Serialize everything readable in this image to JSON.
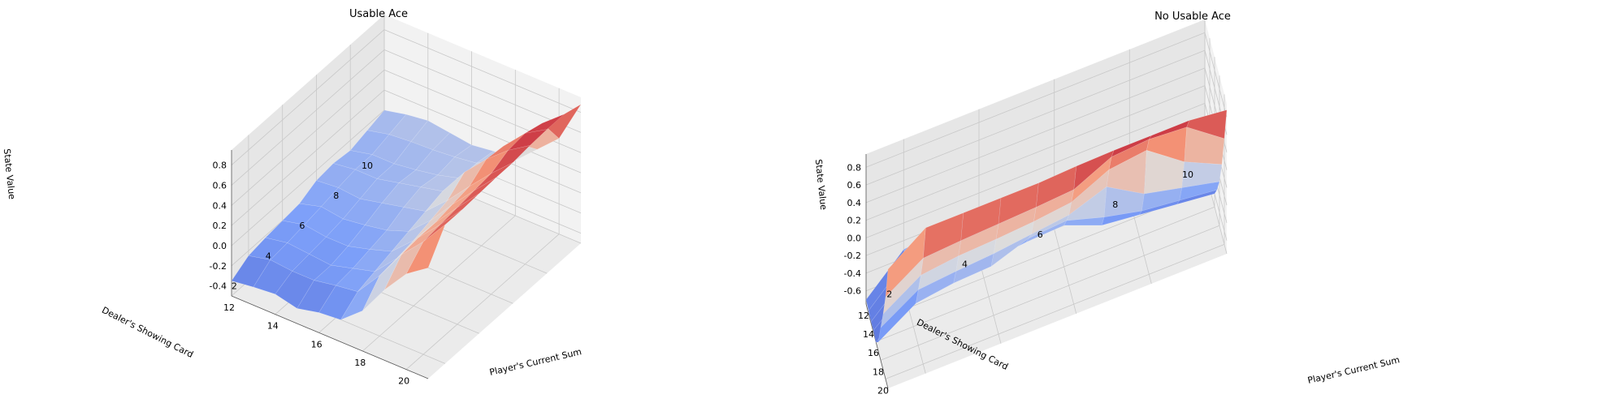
{
  "chart_data": [
    {
      "type": "surface",
      "title": "Usable Ace",
      "xlabel": "Player's Current Sum",
      "ylabel": "Dealer's Showing Card",
      "zlabel": "State Value",
      "x": [
        12,
        13,
        14,
        15,
        16,
        17,
        18,
        19,
        20,
        21
      ],
      "y": [
        1,
        2,
        3,
        4,
        5,
        6,
        7,
        8,
        9,
        10
      ],
      "xticks": [
        "12",
        "14",
        "16",
        "18",
        "20"
      ],
      "yticks": [
        "2",
        "4",
        "6",
        "8",
        "10"
      ],
      "zticks": [
        "-0.4",
        "-0.2",
        "0.0",
        "0.2",
        "0.4",
        "0.6",
        "0.8"
      ],
      "zlim": [
        -0.5,
        0.95
      ],
      "colormap": "coolwarm",
      "z": [
        [
          -0.35,
          -0.32,
          -0.3,
          -0.35,
          -0.3,
          -0.28,
          -0.1,
          0.2,
          0.45,
          0.6
        ],
        [
          -0.25,
          -0.2,
          -0.22,
          -0.22,
          -0.18,
          -0.15,
          0.1,
          0.4,
          0.62,
          0.88
        ],
        [
          -0.22,
          -0.18,
          -0.2,
          -0.22,
          -0.16,
          -0.1,
          0.12,
          0.42,
          0.64,
          0.88
        ],
        [
          -0.2,
          -0.15,
          -0.18,
          -0.18,
          -0.12,
          -0.05,
          0.15,
          0.42,
          0.66,
          0.89
        ],
        [
          -0.18,
          -0.12,
          -0.15,
          -0.12,
          -0.08,
          0.0,
          0.2,
          0.45,
          0.68,
          0.9
        ],
        [
          -0.1,
          -0.08,
          -0.1,
          -0.05,
          0.0,
          0.05,
          0.25,
          0.48,
          0.7,
          0.9
        ],
        [
          -0.08,
          -0.05,
          -0.05,
          0.0,
          0.05,
          0.1,
          0.38,
          0.6,
          0.78,
          0.92
        ],
        [
          -0.1,
          -0.05,
          -0.05,
          -0.02,
          0.02,
          0.08,
          0.25,
          0.58,
          0.8,
          0.93
        ],
        [
          -0.05,
          0.0,
          0.02,
          0.03,
          0.05,
          0.08,
          0.2,
          0.45,
          0.75,
          0.93
        ],
        [
          0.0,
          0.05,
          0.08,
          0.05,
          0.02,
          0.05,
          0.05,
          0.25,
          0.45,
          0.88
        ]
      ]
    },
    {
      "type": "surface",
      "title": "No Usable Ace",
      "xlabel": "Player's Current Sum",
      "ylabel": "Dealer's Showing Card",
      "zlabel": "State Value",
      "x": [
        12,
        13,
        14,
        15,
        16,
        17,
        18,
        19,
        20,
        21
      ],
      "y": [
        1,
        2,
        3,
        4,
        5,
        6,
        7,
        8,
        9,
        10
      ],
      "xticks": [
        "12",
        "14",
        "16",
        "18",
        "20"
      ],
      "yticks": [
        "2",
        "4",
        "6",
        "8",
        "10"
      ],
      "zticks": [
        "-0.6",
        "-0.4",
        "-0.2",
        "0.0",
        "0.2",
        "0.4",
        "0.6",
        "0.8"
      ],
      "zlim": [
        -0.75,
        0.95
      ],
      "colormap": "coolwarm",
      "z": [
        [
          -0.7,
          -0.72,
          -0.74,
          -0.73,
          -0.76,
          -0.65,
          -0.38,
          -0.12,
          0.18,
          0.6
        ],
        [
          -0.3,
          -0.32,
          -0.35,
          -0.38,
          -0.4,
          -0.38,
          -0.12,
          0.15,
          0.45,
          0.9
        ],
        [
          -0.25,
          -0.28,
          -0.3,
          -0.35,
          -0.38,
          -0.32,
          -0.08,
          0.2,
          0.48,
          0.9
        ],
        [
          -0.22,
          -0.25,
          -0.28,
          -0.32,
          -0.35,
          -0.3,
          -0.05,
          0.22,
          0.5,
          0.9
        ],
        [
          -0.18,
          -0.2,
          -0.22,
          -0.28,
          -0.3,
          -0.15,
          0.0,
          0.25,
          0.52,
          0.9
        ],
        [
          -0.15,
          -0.18,
          -0.2,
          -0.25,
          -0.28,
          -0.12,
          0.05,
          0.3,
          0.55,
          0.92
        ],
        [
          -0.35,
          -0.38,
          -0.4,
          -0.42,
          -0.45,
          -0.25,
          0.2,
          0.5,
          0.75,
          0.93
        ],
        [
          -0.4,
          -0.42,
          -0.45,
          -0.48,
          -0.5,
          -0.35,
          -0.05,
          0.55,
          0.78,
          0.93
        ],
        [
          -0.45,
          -0.48,
          -0.5,
          -0.52,
          -0.55,
          -0.4,
          -0.15,
          0.25,
          0.75,
          0.93
        ],
        [
          -0.5,
          -0.52,
          -0.54,
          -0.56,
          -0.6,
          -0.45,
          -0.25,
          0.05,
          0.45,
          0.88
        ]
      ]
    }
  ]
}
